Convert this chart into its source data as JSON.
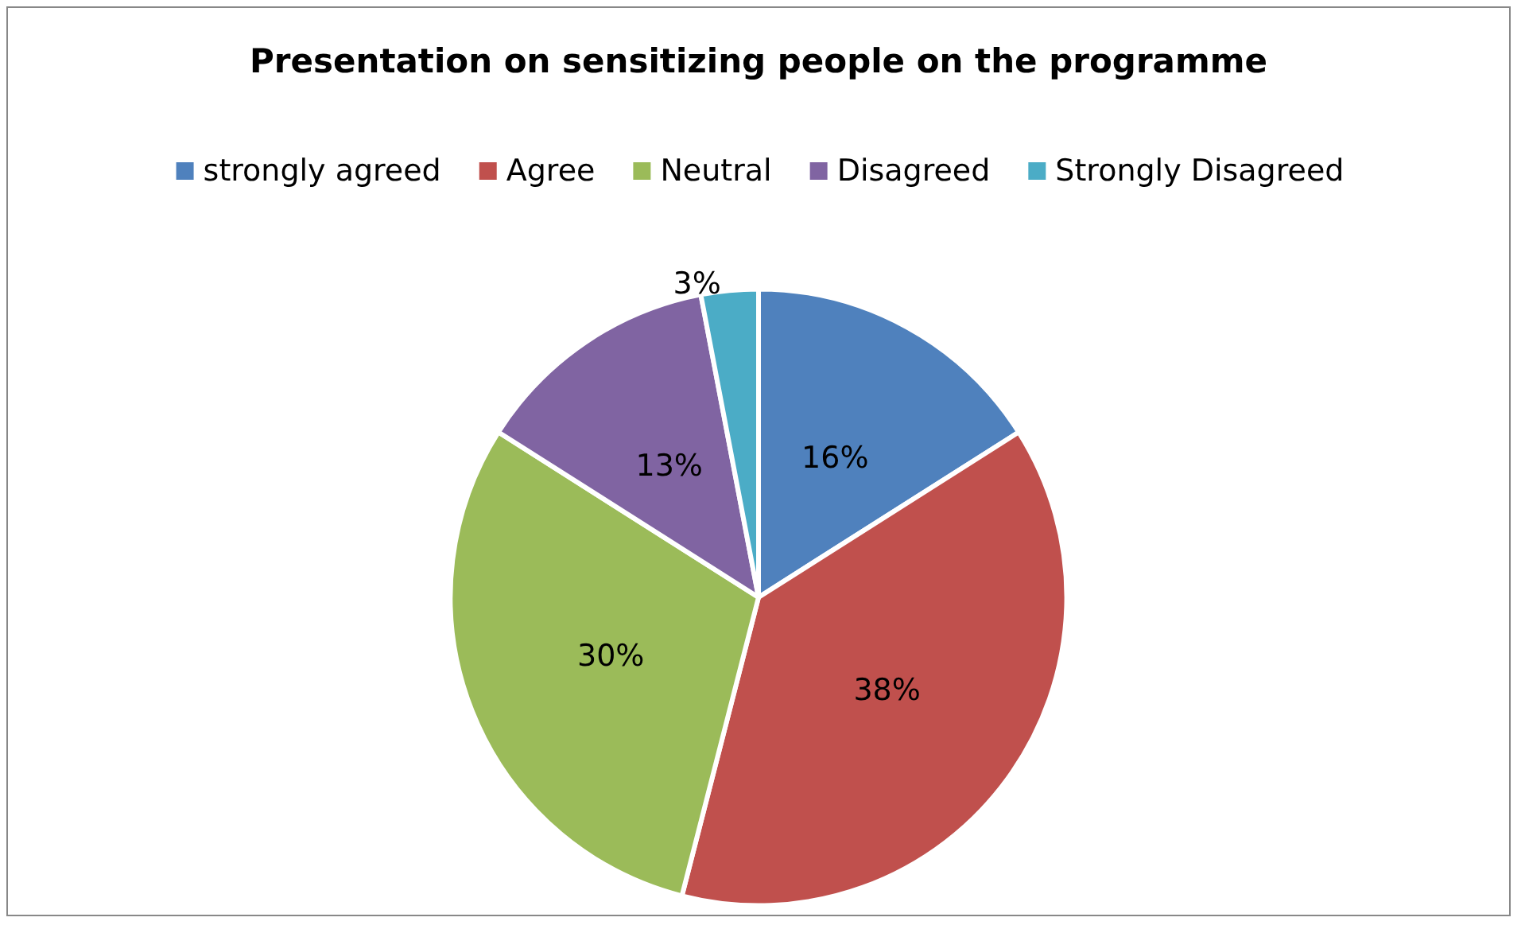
{
  "chart_data": {
    "type": "pie",
    "title": "Presentation on sensitizing people on the programme",
    "categories": [
      "strongly agreed",
      "Agree",
      "Neutral",
      "Disagreed",
      "Strongly Disagreed"
    ],
    "values": [
      16,
      38,
      30,
      13,
      3
    ],
    "colors": [
      "#4f81bd",
      "#c0504d",
      "#9bbb59",
      "#8064a2",
      "#4bacc6"
    ],
    "value_labels": [
      "16%",
      "38%",
      "30%",
      "13%",
      "3%"
    ],
    "legend": "top"
  }
}
